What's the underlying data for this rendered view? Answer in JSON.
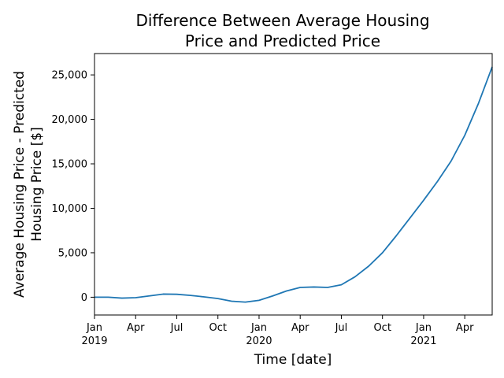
{
  "chart_data": {
    "type": "line",
    "title_lines": [
      "Difference Between Average Housing",
      "Price and Predicted Price"
    ],
    "xlabel": "Time [date]",
    "ylabel_lines": [
      "Average Housing Price - Predicted",
      "Housing Price [$]"
    ],
    "ylim": [
      -2000,
      27400
    ],
    "xlim": [
      "2019-01",
      "2021-06"
    ],
    "grid": false,
    "x_ticks": [
      {
        "month": "2019-01",
        "label": "Jan",
        "year": "2019"
      },
      {
        "month": "2019-04",
        "label": "Apr",
        "year": ""
      },
      {
        "month": "2019-07",
        "label": "Jul",
        "year": ""
      },
      {
        "month": "2019-10",
        "label": "Oct",
        "year": ""
      },
      {
        "month": "2020-01",
        "label": "Jan",
        "year": "2020"
      },
      {
        "month": "2020-04",
        "label": "Apr",
        "year": ""
      },
      {
        "month": "2020-07",
        "label": "Jul",
        "year": ""
      },
      {
        "month": "2020-10",
        "label": "Oct",
        "year": ""
      },
      {
        "month": "2021-01",
        "label": "Jan",
        "year": "2021"
      },
      {
        "month": "2021-04",
        "label": "Apr",
        "year": ""
      }
    ],
    "y_ticks": [
      {
        "value": 0,
        "label": "0"
      },
      {
        "value": 5000,
        "label": "5,000"
      },
      {
        "value": 10000,
        "label": "10,000"
      },
      {
        "value": 15000,
        "label": "15,000"
      },
      {
        "value": 20000,
        "label": "20,000"
      },
      {
        "value": 25000,
        "label": "25,000"
      }
    ],
    "series": [
      {
        "color": "#1f77b4",
        "x": [
          "2019-01",
          "2019-02",
          "2019-03",
          "2019-04",
          "2019-05",
          "2019-06",
          "2019-07",
          "2019-08",
          "2019-09",
          "2019-10",
          "2019-11",
          "2019-12",
          "2020-01",
          "2020-02",
          "2020-03",
          "2020-04",
          "2020-05",
          "2020-06",
          "2020-07",
          "2020-08",
          "2020-09",
          "2020-10",
          "2020-11",
          "2020-12",
          "2021-01",
          "2021-02",
          "2021-03",
          "2021-04",
          "2021-05",
          "2021-06"
        ],
        "values": [
          0,
          0,
          -100,
          -50,
          150,
          350,
          330,
          200,
          40,
          -150,
          -450,
          -550,
          -350,
          150,
          700,
          1100,
          1150,
          1100,
          1400,
          2300,
          3500,
          5000,
          6900,
          8900,
          10900,
          13000,
          15300,
          18200,
          21800,
          25900
        ]
      }
    ]
  }
}
